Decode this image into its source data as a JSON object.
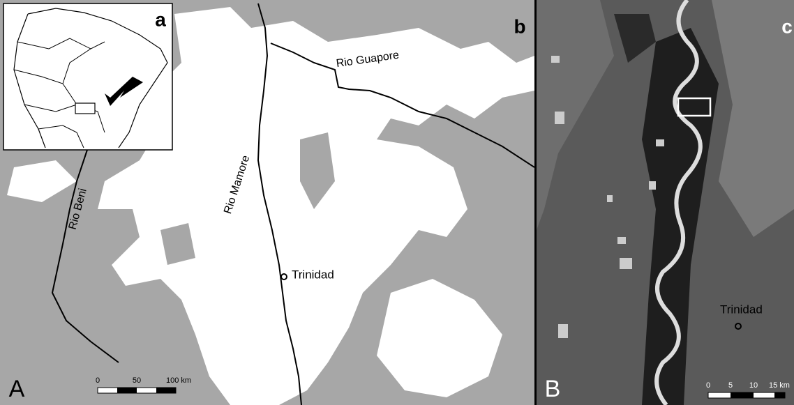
{
  "panel_a": {
    "label": "a"
  },
  "panel_b": {
    "label": "b",
    "map_label": "A",
    "rivers": [
      "Rio Guapore",
      "Rio Mamore",
      "Rio Beni"
    ],
    "town": "Trinidad",
    "scale": [
      "0",
      "50",
      "100 km"
    ]
  },
  "panel_c": {
    "label": "c",
    "map_label": "B",
    "town": "Trinidad",
    "scale": [
      "0",
      "5",
      "10",
      "15 km"
    ]
  }
}
